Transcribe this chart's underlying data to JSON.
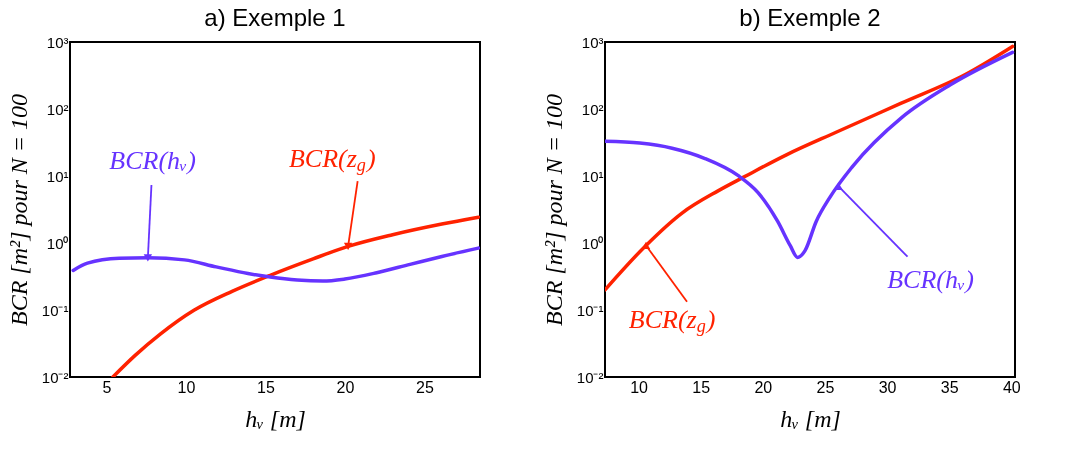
{
  "chart_data": [
    {
      "type": "line",
      "title": "a) Exemple 1",
      "xlabel": "hᵥ [m]",
      "ylabel": "BCR [m²] pour N = 100",
      "log": "y",
      "grid": false,
      "marker": "none",
      "line_style": "solid",
      "xlim": [
        2.7,
        28.5
      ],
      "xticks": [
        5,
        10,
        15,
        20,
        25
      ],
      "ylim": [
        0.01,
        1000
      ],
      "yticks": [
        {
          "value": 0.01,
          "label": "10⁻²"
        },
        {
          "value": 0.1,
          "label": "10⁻¹"
        },
        {
          "value": 1,
          "label": "10⁰"
        },
        {
          "value": 10,
          "label": "10¹"
        },
        {
          "value": 100,
          "label": "10²"
        },
        {
          "value": 1000,
          "label": "10³"
        }
      ],
      "series": [
        {
          "color": "#ff2200",
          "x": [
            5.4,
            6.8,
            8.4,
            10.5,
            12.9,
            15.3,
            18.0,
            20.2,
            23.0,
            26.1,
            28.4
          ],
          "values": [
            0.01,
            0.021,
            0.044,
            0.099,
            0.19,
            0.33,
            0.58,
            0.89,
            1.33,
            1.92,
            2.43
          ]
        },
        {
          "color": "#6633ff",
          "x": [
            2.9,
            3.8,
            5.8,
            7.6,
            9.9,
            11.9,
            13.9,
            15.3,
            17.0,
            18.6,
            20.0,
            22.0,
            24.1,
            26.1,
            28.4
          ],
          "values": [
            0.39,
            0.5,
            0.59,
            0.6,
            0.56,
            0.44,
            0.35,
            0.31,
            0.28,
            0.27,
            0.29,
            0.36,
            0.48,
            0.63,
            0.84
          ]
        }
      ],
      "annotations": [
        {
          "text": "BCR(z$_{g}$)",
          "x": 20.2,
          "y": 0.89
        },
        {
          "text": "BCR(hᵥ)",
          "x": 7.6,
          "y": 0.6
        }
      ]
    },
    {
      "type": "line",
      "title": "b) Exemple 2",
      "xlabel": "hᵥ [m]",
      "ylabel": "BCR [m²] pour N = 100",
      "log": "y",
      "grid": false,
      "marker": "none",
      "line_style": "solid",
      "xlim": [
        7.3,
        40.3
      ],
      "xticks": [
        10,
        15,
        20,
        25,
        30,
        35,
        40
      ],
      "ylim": [
        0.01,
        1000
      ],
      "yticks": [
        {
          "value": 0.01,
          "label": "10⁻²"
        },
        {
          "value": 0.1,
          "label": "10⁻¹"
        },
        {
          "value": 1,
          "label": "10⁰"
        },
        {
          "value": 10,
          "label": "10¹"
        },
        {
          "value": 100,
          "label": "10²"
        },
        {
          "value": 1000,
          "label": "10³"
        }
      ],
      "series": [
        {
          "color": "#ff2200",
          "x": [
            7.3,
            10.6,
            13.5,
            16.4,
            18.5,
            21.9,
            25.9,
            31.1,
            36.3,
            40.1
          ],
          "values": [
            0.2,
            0.92,
            2.8,
            6.0,
            9.7,
            20.7,
            45,
            121,
            327,
            858
          ]
        },
        {
          "color": "#6633ff",
          "x": [
            7.3,
            10.1,
            12.7,
            15.3,
            18.0,
            19.6,
            21.2,
            22.2,
            22.8,
            23.4,
            24.3,
            25.4,
            27.2,
            31.2,
            35.1,
            40.1
          ],
          "values": [
            33,
            31,
            26,
            18.4,
            10.2,
            5.7,
            2.1,
            0.92,
            0.61,
            0.77,
            2.1,
            4.8,
            13.7,
            75,
            230,
            700
          ]
        }
      ],
      "annotations": [
        {
          "text": "BCR(z$_{g}$)",
          "x": 10.6,
          "y": 0.92
        },
        {
          "text": "BCR(hᵥ)",
          "x": 26.1,
          "y": 7
        }
      ]
    }
  ]
}
